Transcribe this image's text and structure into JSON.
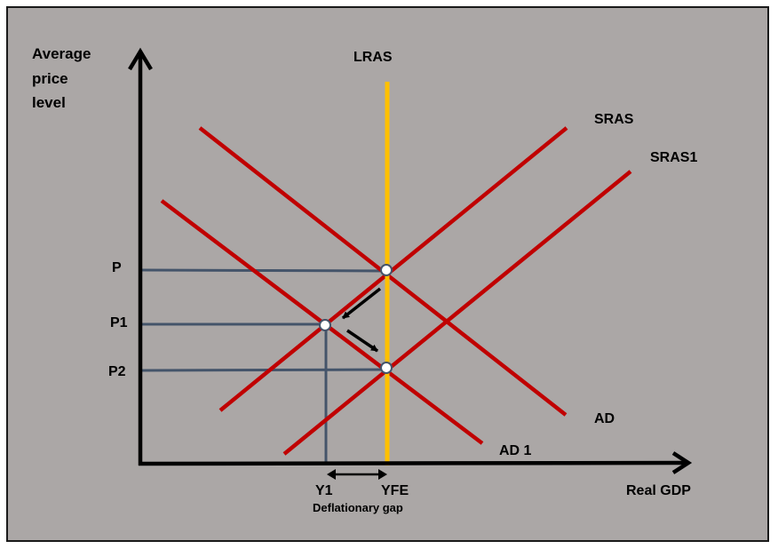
{
  "labels": {
    "y_axis": [
      "Average",
      "price",
      "level"
    ],
    "x_axis": "Real GDP",
    "lras": "LRAS",
    "sras": "SRAS",
    "sras1": "SRAS1",
    "ad": "AD",
    "ad1": "AD 1",
    "p": "P",
    "p1": "P1",
    "p2": "P2",
    "y1": "Y1",
    "yfe": "YFE",
    "gap": "Deflationary gap"
  },
  "colors": {
    "background": "#aba7a6",
    "curve": "#c00000",
    "lras": "#ffc000",
    "guide": "#44546a",
    "axis": "#000000",
    "point_fill": "#ffffff",
    "point_stroke": "#44546a"
  }
}
